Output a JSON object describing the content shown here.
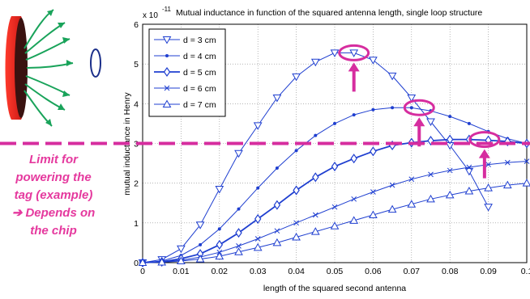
{
  "chart_data": {
    "type": "line",
    "title": "Mutual inductance in function of the squared antenna length, single loop structure",
    "exponent_base": "x 10",
    "exponent_power": "-11",
    "xlabel": "length of the squared second antenna",
    "ylabel": "mutual inductance in Henry",
    "xlim": [
      0,
      0.1
    ],
    "ylim": [
      0,
      6
    ],
    "x_ticks": [
      "0",
      "0.01",
      "0.02",
      "0.03",
      "0.04",
      "0.05",
      "0.06",
      "0.07",
      "0.08",
      "0.09",
      "0.1"
    ],
    "y_ticks": [
      "0",
      "1",
      "2",
      "3",
      "4",
      "5",
      "6"
    ],
    "grid": true,
    "legend_position": "top-left",
    "series": [
      {
        "name": "d = 3 cm",
        "marker": "triangle-down",
        "x": [
          0,
          0.005,
          0.01,
          0.015,
          0.02,
          0.025,
          0.03,
          0.035,
          0.04,
          0.045,
          0.05,
          0.055,
          0.06,
          0.065,
          0.07,
          0.075,
          0.08,
          0.085,
          0.09
        ],
        "values": [
          0,
          0.08,
          0.35,
          0.95,
          1.85,
          2.75,
          3.45,
          4.15,
          4.68,
          5.05,
          5.28,
          5.28,
          5.1,
          4.7,
          4.15,
          3.55,
          2.95,
          2.3,
          1.4
        ]
      },
      {
        "name": "d = 4 cm",
        "marker": "dot",
        "x": [
          0,
          0.005,
          0.01,
          0.015,
          0.02,
          0.025,
          0.03,
          0.035,
          0.04,
          0.045,
          0.05,
          0.055,
          0.06,
          0.065,
          0.07,
          0.075,
          0.08,
          0.085,
          0.09,
          0.095,
          0.1
        ],
        "values": [
          0,
          0.04,
          0.18,
          0.45,
          0.85,
          1.35,
          1.88,
          2.38,
          2.82,
          3.2,
          3.5,
          3.72,
          3.85,
          3.9,
          3.9,
          3.82,
          3.68,
          3.5,
          3.3,
          3.12,
          3.0
        ]
      },
      {
        "name": "d = 5 cm",
        "marker": "diamond",
        "x": [
          0,
          0.005,
          0.01,
          0.015,
          0.02,
          0.025,
          0.03,
          0.035,
          0.04,
          0.045,
          0.05,
          0.055,
          0.06,
          0.065,
          0.07,
          0.075,
          0.08,
          0.085,
          0.09,
          0.095,
          0.1
        ],
        "values": [
          0,
          0.02,
          0.1,
          0.22,
          0.45,
          0.75,
          1.1,
          1.45,
          1.82,
          2.15,
          2.42,
          2.62,
          2.8,
          2.95,
          3.02,
          3.07,
          3.1,
          3.1,
          3.08,
          3.05,
          3.0
        ]
      },
      {
        "name": "d = 6 cm",
        "marker": "x",
        "x": [
          0,
          0.005,
          0.01,
          0.015,
          0.02,
          0.025,
          0.03,
          0.035,
          0.04,
          0.045,
          0.05,
          0.055,
          0.06,
          0.065,
          0.07,
          0.075,
          0.08,
          0.085,
          0.09,
          0.095,
          0.1
        ],
        "values": [
          0,
          0.02,
          0.06,
          0.14,
          0.26,
          0.42,
          0.6,
          0.8,
          1.0,
          1.2,
          1.4,
          1.6,
          1.78,
          1.95,
          2.1,
          2.22,
          2.32,
          2.4,
          2.47,
          2.52,
          2.55
        ]
      },
      {
        "name": "d = 7 cm",
        "marker": "triangle-up",
        "x": [
          0,
          0.005,
          0.01,
          0.015,
          0.02,
          0.025,
          0.03,
          0.035,
          0.04,
          0.045,
          0.05,
          0.055,
          0.06,
          0.065,
          0.07,
          0.075,
          0.08,
          0.085,
          0.09,
          0.095,
          0.1
        ],
        "values": [
          0,
          0.01,
          0.04,
          0.09,
          0.16,
          0.27,
          0.38,
          0.5,
          0.64,
          0.78,
          0.92,
          1.06,
          1.2,
          1.34,
          1.47,
          1.6,
          1.7,
          1.8,
          1.88,
          1.95,
          2.0
        ]
      }
    ]
  },
  "annotation": {
    "limit_text_lines": [
      "Limit for",
      "powering the",
      "tag (example)",
      "➔ Depends on",
      "the chip"
    ],
    "limit_value": 3.0,
    "highlight_points": [
      {
        "x": 0.055,
        "y": 5.28
      },
      {
        "x": 0.072,
        "y": 3.9
      },
      {
        "x": 0.089,
        "y": 3.1
      }
    ]
  },
  "colors": {
    "series": "#1f3fd0",
    "axis": "#000000",
    "grid": "#888888",
    "highlight": "#d62d9f",
    "annotation_text": "#e5399e",
    "coil_red": "#d9221c",
    "coil_dark": "#3a1210",
    "field_lines": "#19a35a",
    "tag_loop": "#1b2f8a"
  }
}
